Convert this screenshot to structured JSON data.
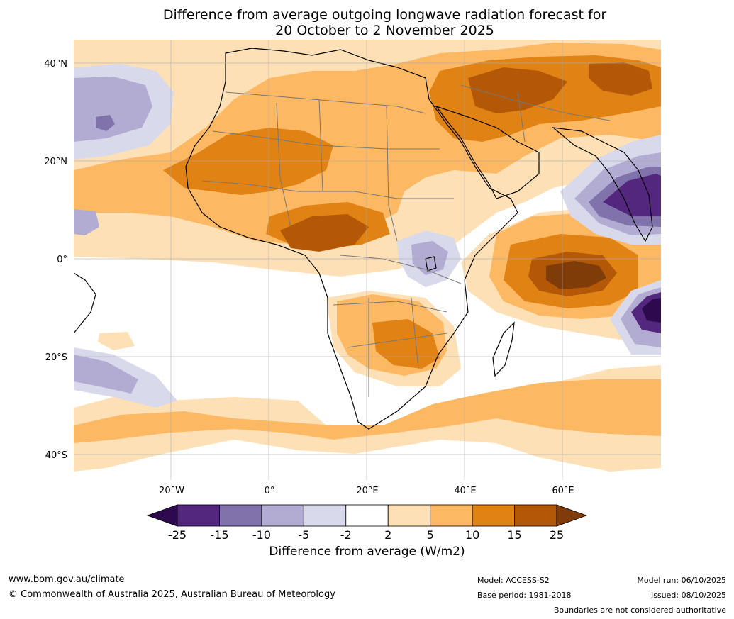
{
  "title": {
    "line1": "Difference from average outgoing longwave radiation forecast for",
    "line2": "20 October to 2 November 2025"
  },
  "axes": {
    "lat_labels": [
      "40°N",
      "20°N",
      "0°",
      "20°S",
      "40°S"
    ],
    "lon_labels": [
      "20°W",
      "0°",
      "20°E",
      "40°E",
      "60°E"
    ]
  },
  "colorbar": {
    "title": "Difference from average (W/m2)",
    "tick_labels": [
      "-25",
      "-15",
      "-10",
      "-5",
      "-2",
      "2",
      "5",
      "10",
      "15",
      "25"
    ],
    "colors": [
      "#2d0a4e",
      "#54277f",
      "#8073ac",
      "#b2abd2",
      "#d8daeb",
      "#ffffff",
      "#fee0b6",
      "#fdb863",
      "#e08214",
      "#b35806",
      "#7f3b08"
    ]
  },
  "chart_data": {
    "type": "heatmap",
    "title": "Difference from average outgoing longwave radiation forecast for 20 October to 2 November 2025",
    "units": "W/m2",
    "levels": [
      -25,
      -15,
      -10,
      -5,
      -2,
      2,
      5,
      10,
      15,
      25
    ],
    "lat_range": [
      -45,
      45
    ],
    "lon_range": [
      -40,
      80
    ]
  },
  "footer": {
    "website": "www.bom.gov.au/climate",
    "copyright": "© Commonwealth of Australia 2025, Australian Bureau of Meteorology",
    "model": "Model: ACCESS-S2",
    "base_period": "Base period: 1981-2018",
    "model_run": "Model run: 06/10/2025",
    "issued": "Issued: 08/10/2025",
    "disclaimer": "Boundaries are not considered authoritative"
  }
}
